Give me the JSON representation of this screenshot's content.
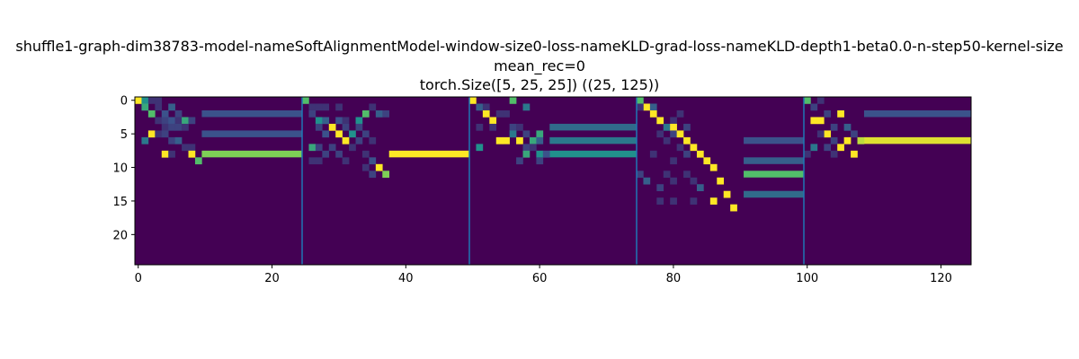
{
  "chart_data": {
    "type": "heatmap",
    "title_lines": [
      "shuffle1-graph-dim38783-model-nameSoftAlignmentModel-window-size0-loss-nameKLD-grad-loss-nameKLD-depth1-beta0.0-n-step50-kernel-size",
      "mean_rec=0",
      "torch.Size([5, 25, 25]) ((25, 125))"
    ],
    "rows": 25,
    "cols": 125,
    "xlim": [
      0,
      125
    ],
    "ylim": [
      0,
      25
    ],
    "x_ticks": [
      0,
      20,
      40,
      60,
      80,
      100,
      120
    ],
    "y_ticks": [
      0,
      5,
      10,
      15,
      20
    ],
    "separators": [
      24.5,
      49.5,
      74.5,
      99.5
    ],
    "colormap": "viridis",
    "background_value": 0,
    "cells": [
      [
        0,
        0,
        1.0
      ],
      [
        1,
        0,
        0.5
      ],
      [
        2,
        0,
        0.15
      ],
      [
        3,
        0,
        0.15
      ],
      [
        1,
        1,
        0.6
      ],
      [
        3,
        1,
        0.15
      ],
      [
        5,
        1,
        0.3
      ],
      [
        2,
        2,
        0.7
      ],
      [
        4,
        2,
        0.25
      ],
      [
        6,
        2,
        0.2
      ],
      [
        3,
        3,
        0.15
      ],
      [
        4,
        3,
        0.2
      ],
      [
        5,
        3,
        0.25
      ],
      [
        6,
        3,
        0.15
      ],
      [
        7,
        3,
        0.6
      ],
      [
        8,
        3,
        0.2
      ],
      [
        4,
        4,
        0.15
      ],
      [
        5,
        4,
        0.2
      ],
      [
        6,
        4,
        0.2
      ],
      [
        7,
        4,
        0.15
      ],
      [
        2,
        5,
        1.0
      ],
      [
        3,
        5,
        0.15
      ],
      [
        4,
        5,
        0.2
      ],
      [
        1,
        6,
        0.4
      ],
      [
        5,
        6,
        0.2
      ],
      [
        6,
        6,
        0.3
      ],
      [
        7,
        7,
        0.15
      ],
      [
        8,
        7,
        0.15
      ],
      [
        4,
        8,
        1.0
      ],
      [
        8,
        8,
        1.0
      ],
      [
        5,
        8,
        0.15
      ],
      [
        9,
        9,
        0.7
      ],
      [
        25,
        0,
        0.7
      ],
      [
        26,
        1,
        0.15
      ],
      [
        27,
        1,
        0.15
      ],
      [
        28,
        1,
        0.15
      ],
      [
        30,
        1,
        0.15
      ],
      [
        35,
        1,
        0.15
      ],
      [
        26,
        2,
        0.2
      ],
      [
        34,
        2,
        0.7
      ],
      [
        36,
        2,
        0.3
      ],
      [
        37,
        2,
        0.2
      ],
      [
        27,
        3,
        0.5
      ],
      [
        28,
        3,
        0.3
      ],
      [
        30,
        3,
        0.25
      ],
      [
        31,
        3,
        0.15
      ],
      [
        33,
        3,
        0.5
      ],
      [
        29,
        4,
        1.0
      ],
      [
        27,
        4,
        0.2
      ],
      [
        31,
        4,
        0.2
      ],
      [
        33,
        4,
        0.2
      ],
      [
        30,
        5,
        1.0
      ],
      [
        32,
        5,
        0.5
      ],
      [
        28,
        5,
        0.25
      ],
      [
        34,
        5,
        0.2
      ],
      [
        31,
        6,
        1.0
      ],
      [
        33,
        6,
        0.2
      ],
      [
        35,
        6,
        0.15
      ],
      [
        26,
        7,
        0.6
      ],
      [
        27,
        7,
        0.2
      ],
      [
        29,
        7,
        0.2
      ],
      [
        32,
        7,
        0.15
      ],
      [
        28,
        8,
        0.2
      ],
      [
        30,
        8,
        0.2
      ],
      [
        34,
        8,
        0.15
      ],
      [
        26,
        9,
        0.15
      ],
      [
        27,
        9,
        0.15
      ],
      [
        31,
        9,
        0.15
      ],
      [
        35,
        9,
        0.25
      ],
      [
        36,
        10,
        1.0
      ],
      [
        34,
        10,
        0.15
      ],
      [
        37,
        11,
        0.8
      ],
      [
        35,
        11,
        0.2
      ],
      [
        50,
        0,
        1.0
      ],
      [
        51,
        1,
        0.3
      ],
      [
        52,
        1,
        0.15
      ],
      [
        56,
        0,
        0.7
      ],
      [
        58,
        1,
        0.4
      ],
      [
        52,
        2,
        1.0
      ],
      [
        53,
        3,
        1.0
      ],
      [
        54,
        2,
        0.15
      ],
      [
        55,
        2,
        0.15
      ],
      [
        51,
        4,
        0.15
      ],
      [
        53,
        4,
        0.15
      ],
      [
        56,
        4,
        0.2
      ],
      [
        57,
        4,
        0.15
      ],
      [
        56,
        5,
        0.4
      ],
      [
        60,
        5,
        0.6
      ],
      [
        58,
        5,
        0.2
      ],
      [
        54,
        6,
        1.0
      ],
      [
        55,
        6,
        1.0
      ],
      [
        57,
        6,
        1.0
      ],
      [
        59,
        6,
        0.6
      ],
      [
        60,
        6,
        0.3
      ],
      [
        51,
        7,
        0.5
      ],
      [
        58,
        7,
        0.2
      ],
      [
        59,
        7,
        0.15
      ],
      [
        58,
        8,
        0.6
      ],
      [
        60,
        8,
        0.5
      ],
      [
        61,
        8,
        0.25
      ],
      [
        57,
        9,
        0.2
      ],
      [
        60,
        9,
        0.2
      ],
      [
        75,
        0,
        0.7
      ],
      [
        76,
        1,
        1.0
      ],
      [
        77,
        1,
        0.3
      ],
      [
        75,
        1,
        0.15
      ],
      [
        77,
        2,
        1.0
      ],
      [
        78,
        3,
        1.0
      ],
      [
        80,
        3,
        0.15
      ],
      [
        81,
        2,
        0.15
      ],
      [
        79,
        4,
        0.4
      ],
      [
        80,
        4,
        1.0
      ],
      [
        82,
        4,
        0.2
      ],
      [
        80,
        5,
        0.2
      ],
      [
        81,
        5,
        1.0
      ],
      [
        78,
        5,
        0.15
      ],
      [
        82,
        6,
        1.0
      ],
      [
        79,
        6,
        0.15
      ],
      [
        83,
        7,
        1.0
      ],
      [
        81,
        7,
        0.15
      ],
      [
        84,
        8,
        1.0
      ],
      [
        82,
        8,
        0.2
      ],
      [
        77,
        8,
        0.15
      ],
      [
        85,
        9,
        1.0
      ],
      [
        80,
        9,
        0.15
      ],
      [
        86,
        10,
        1.0
      ],
      [
        75,
        11,
        0.2
      ],
      [
        79,
        11,
        0.15
      ],
      [
        82,
        11,
        0.15
      ],
      [
        76,
        12,
        0.3
      ],
      [
        80,
        12,
        0.15
      ],
      [
        83,
        12,
        0.15
      ],
      [
        87,
        12,
        1.0
      ],
      [
        88,
        14,
        1.0
      ],
      [
        86,
        15,
        1.0
      ],
      [
        89,
        16,
        1.0
      ],
      [
        78,
        13,
        0.2
      ],
      [
        84,
        13,
        0.3
      ],
      [
        78,
        15,
        0.15
      ],
      [
        80,
        15,
        0.15
      ],
      [
        83,
        15,
        0.15
      ],
      [
        100,
        0,
        0.7
      ],
      [
        102,
        0,
        0.15
      ],
      [
        101,
        1,
        0.2
      ],
      [
        101,
        3,
        1.0
      ],
      [
        102,
        3,
        1.0
      ],
      [
        103,
        2,
        0.2
      ],
      [
        105,
        2,
        1.0
      ],
      [
        104,
        4,
        0.2
      ],
      [
        106,
        4,
        0.3
      ],
      [
        103,
        5,
        1.0
      ],
      [
        102,
        5,
        0.15
      ],
      [
        107,
        5,
        0.2
      ],
      [
        104,
        6,
        0.2
      ],
      [
        106,
        6,
        1.0
      ],
      [
        108,
        6,
        0.9
      ],
      [
        101,
        7,
        0.4
      ],
      [
        105,
        7,
        1.0
      ],
      [
        103,
        7,
        0.2
      ],
      [
        107,
        8,
        1.0
      ],
      [
        100,
        8,
        0.15
      ],
      [
        104,
        8,
        0.15
      ]
    ],
    "bars": [
      [
        10,
        24,
        2,
        0.25
      ],
      [
        10,
        24,
        5,
        0.25
      ],
      [
        10,
        24,
        8,
        0.8
      ],
      [
        38,
        49,
        8,
        1.0
      ],
      [
        62,
        74,
        4,
        0.35
      ],
      [
        62,
        74,
        6,
        0.4
      ],
      [
        62,
        74,
        8,
        0.5
      ],
      [
        91,
        99,
        6,
        0.25
      ],
      [
        91,
        99,
        9,
        0.3
      ],
      [
        91,
        99,
        11,
        0.7
      ],
      [
        91,
        99,
        14,
        0.35
      ],
      [
        109,
        124,
        2,
        0.25
      ],
      [
        109,
        124,
        6,
        0.95
      ]
    ]
  }
}
